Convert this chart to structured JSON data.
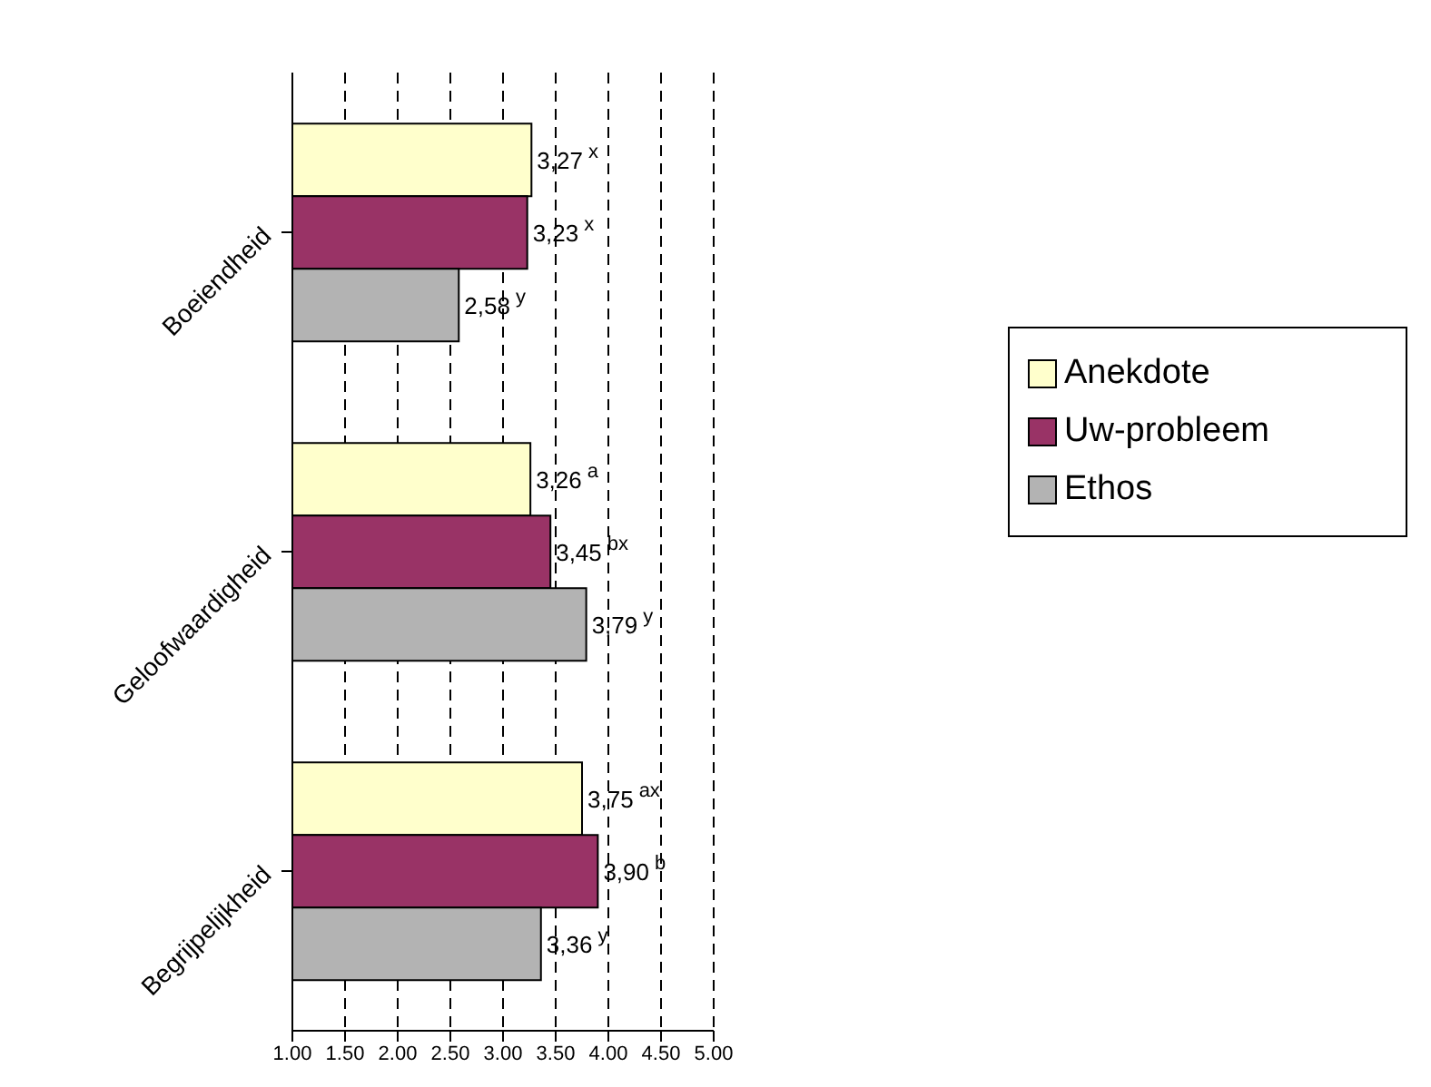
{
  "chart_data": {
    "type": "bar",
    "orientation": "horizontal",
    "categories": [
      "Boeiendheid",
      "Geloofwaardigheid",
      "Begrijpelijkheid"
    ],
    "series": [
      {
        "name": "Anekdote",
        "color": "#ffffcc",
        "values": [
          3.27,
          3.26,
          3.75
        ],
        "value_labels": [
          "3,27$^{x}$",
          "3,26$^{a}$",
          "3,75$^{ax}$"
        ]
      },
      {
        "name": "Uw-probleem",
        "color": "#993366",
        "values": [
          3.23,
          3.45,
          3.9
        ],
        "value_labels": [
          "3,23$^{x}$",
          "3,45$^{bx}$",
          "3,90$^{b}$"
        ]
      },
      {
        "name": "Ethos",
        "color": "#b3b3b3",
        "values": [
          2.58,
          3.79,
          3.36
        ],
        "value_labels": [
          "2,58$^{y}$",
          "3,79$^{y}$",
          "3,36$^{y}$"
        ]
      }
    ],
    "xlim": [
      1,
      5
    ],
    "xticks": [
      {
        "value": 1,
        "label": "1.00"
      },
      {
        "value": 1.5,
        "label": "1.50"
      },
      {
        "value": 2,
        "label": "2.00"
      },
      {
        "value": 2.5,
        "label": "2.50"
      },
      {
        "value": 3,
        "label": "3.00"
      },
      {
        "value": 3.5,
        "label": "3.50"
      },
      {
        "value": 4,
        "label": "4.00"
      },
      {
        "value": 4.5,
        "label": "4.50"
      },
      {
        "value": 5,
        "label": "5.00"
      }
    ],
    "grid": "x",
    "legend": "right"
  }
}
